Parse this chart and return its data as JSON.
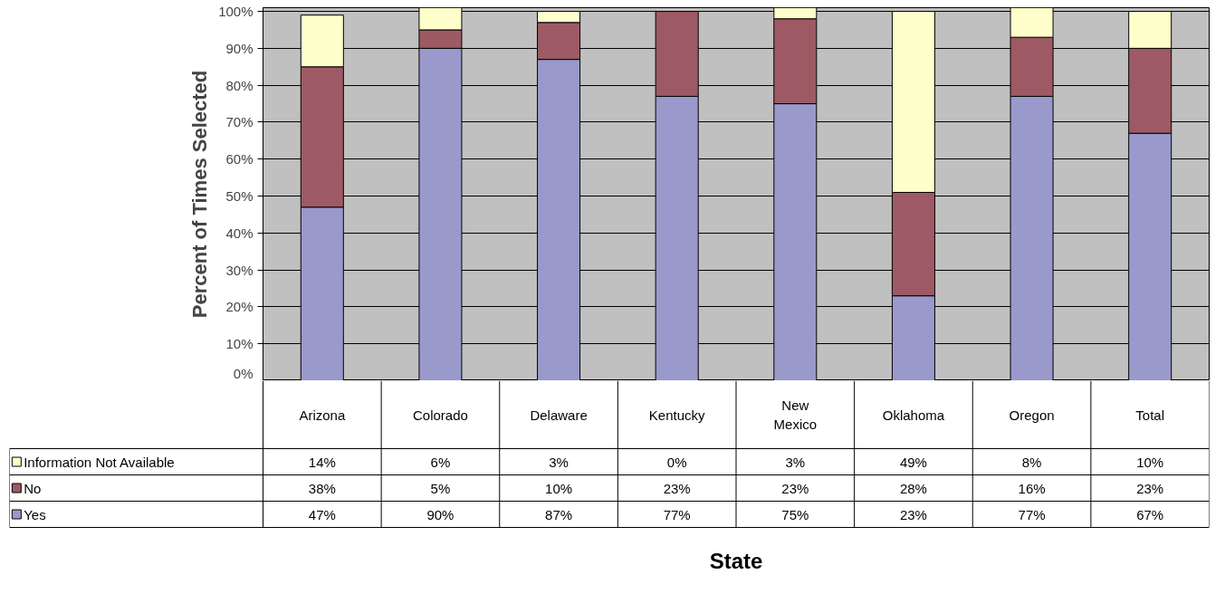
{
  "chart_data": {
    "type": "bar",
    "stacked": true,
    "annotations": [
      "State"
    ],
    "ylabel": "Percent of Times Selected",
    "categories": [
      "Arizona",
      "Colorado",
      "Delaware",
      "Kentucky",
      "New Mexico",
      "Oklahoma",
      "Oregon",
      "Total"
    ],
    "series": [
      {
        "name": "Yes",
        "color": "#9999cc",
        "values": [
          47,
          90,
          87,
          77,
          75,
          23,
          77,
          67
        ],
        "value_labels": [
          "47%",
          "90%",
          "87%",
          "77%",
          "75%",
          "23%",
          "77%",
          "67%"
        ]
      },
      {
        "name": "No",
        "color": "#9e5a64",
        "values": [
          38,
          5,
          10,
          23,
          23,
          28,
          16,
          23
        ],
        "value_labels": [
          "38%",
          "5%",
          "10%",
          "23%",
          "23%",
          "28%",
          "16%",
          "23%"
        ]
      },
      {
        "name": "Information Not Available",
        "color": "#ffffcc",
        "values": [
          14,
          6,
          3,
          0,
          3,
          49,
          8,
          10
        ],
        "value_labels": [
          "14%",
          "6%",
          "3%",
          "0%",
          "3%",
          "49%",
          "8%",
          "10%"
        ]
      }
    ],
    "ylim": [
      0,
      101
    ],
    "yticks": [
      {
        "value": 0,
        "label": "0%"
      },
      {
        "value": 10,
        "label": "10%"
      },
      {
        "value": 20,
        "label": "20%"
      },
      {
        "value": 30,
        "label": "30%"
      },
      {
        "value": 40,
        "label": "40%"
      },
      {
        "value": 50,
        "label": "50%"
      },
      {
        "value": 60,
        "label": "60%"
      },
      {
        "value": 70,
        "label": "70%"
      },
      {
        "value": 80,
        "label": "80%"
      },
      {
        "value": 90,
        "label": "90%"
      },
      {
        "value": 100,
        "label": "100%"
      }
    ],
    "grid": "y",
    "legend": "bottom"
  }
}
